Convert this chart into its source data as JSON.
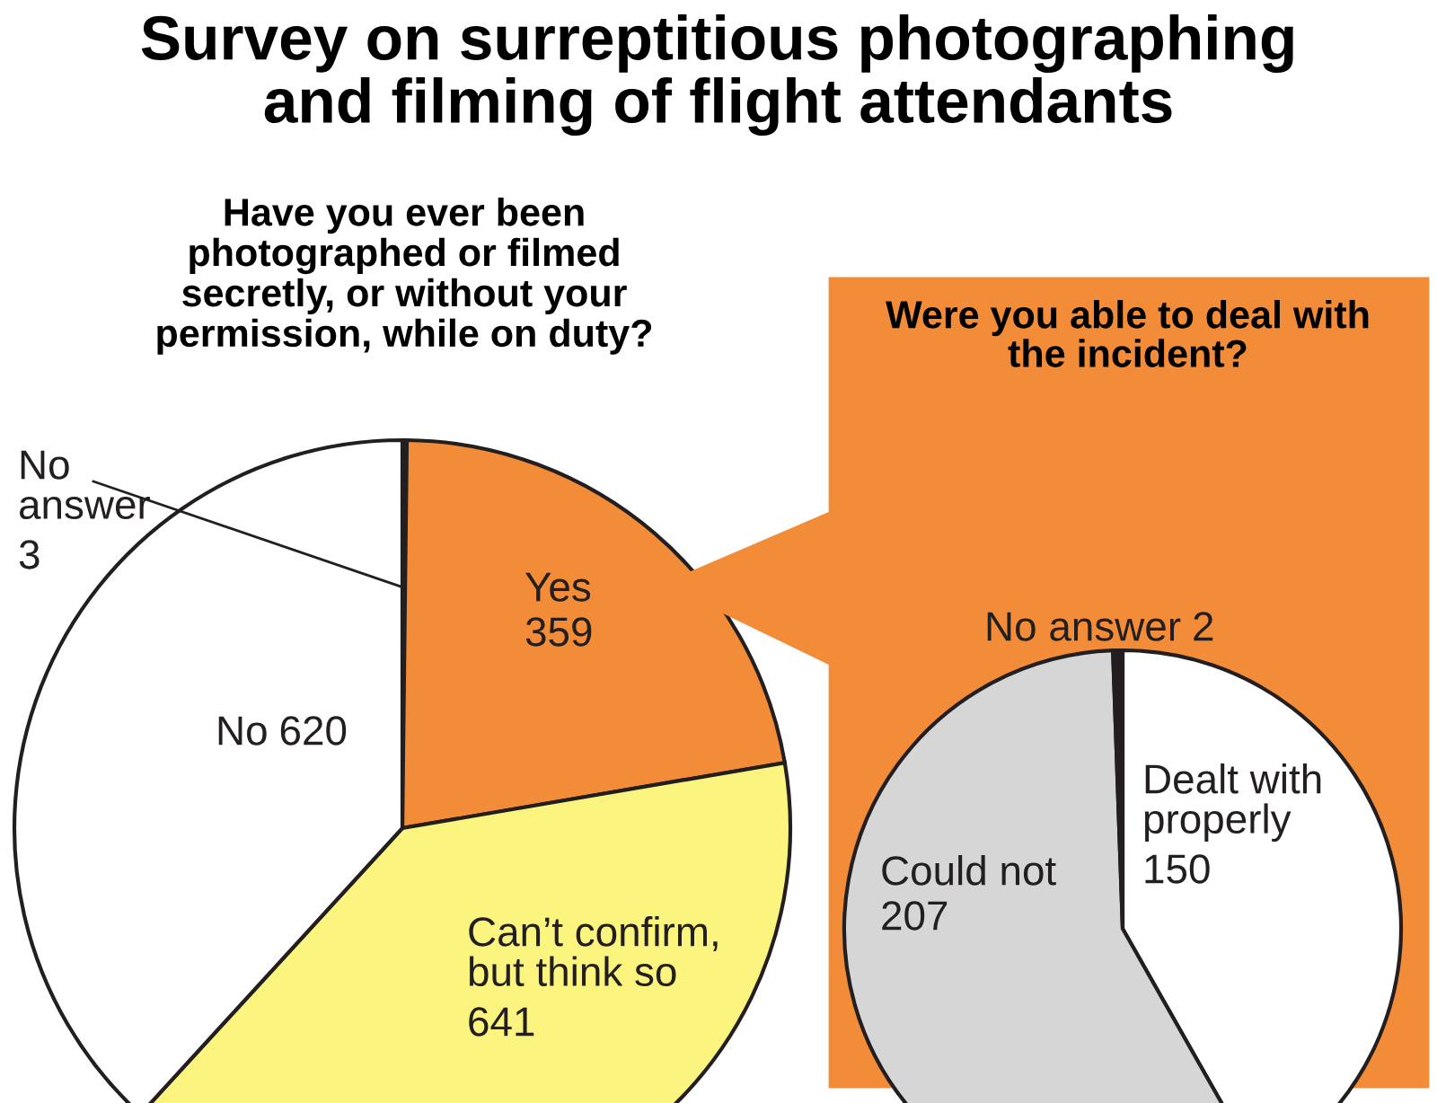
{
  "chart_data": [
    {
      "type": "pie",
      "title": "Survey on surreptitious photographing\nand filming of flight attendants",
      "subtitle": "Have you ever been\nphotographed or filmed\nsecretly, or without your\npermission, while on duty?",
      "categories": [
        "No\nanswer",
        "Yes",
        "Can’t confirm,\nbut think so",
        "No"
      ],
      "values": [
        3,
        359,
        641,
        620
      ],
      "colors": [
        "#231f20",
        "#f28c38",
        "#fbf47e",
        "#ffffff"
      ],
      "data_labels": true
    },
    {
      "type": "pie",
      "title": "Were you able to deal with\nthe incident?",
      "categories": [
        "Dealt with\nproperly",
        "Could not",
        "No answer"
      ],
      "values": [
        150,
        207,
        2
      ],
      "colors": [
        "#ffffff",
        "#d6d6d6",
        "#231f20"
      ],
      "data_labels": true
    }
  ]
}
